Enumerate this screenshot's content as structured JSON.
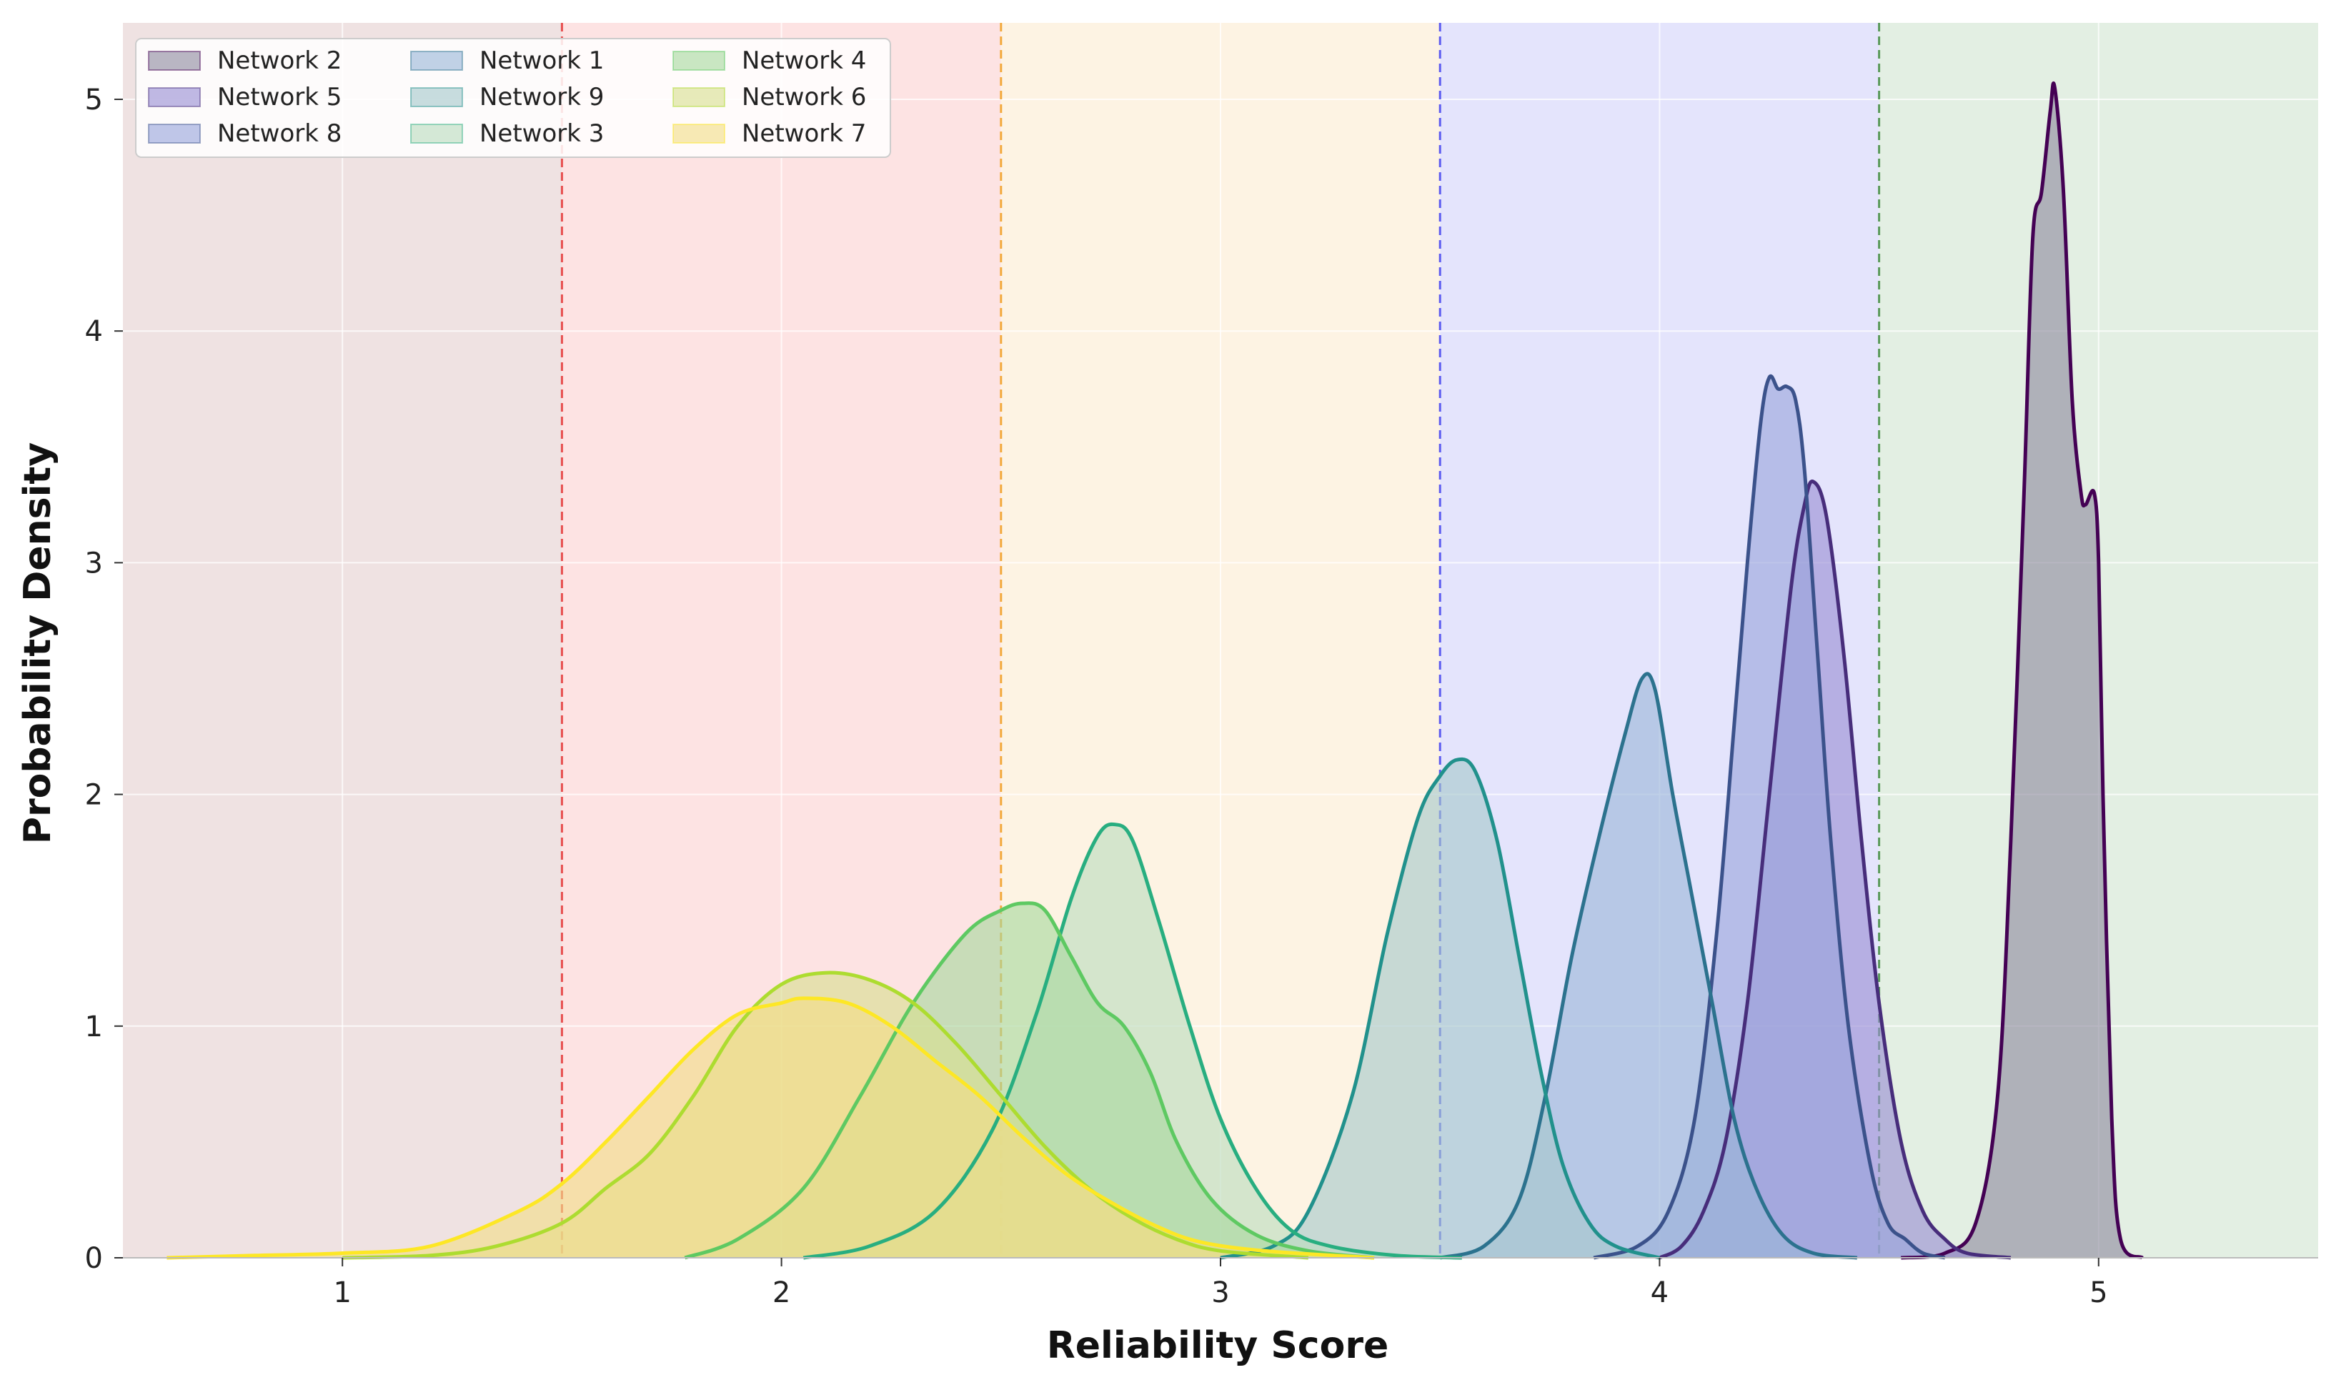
{
  "chart_data": {
    "type": "area",
    "title": "",
    "xlabel": "Reliability Score",
    "ylabel": "Probability Density",
    "xlim": [
      0.5,
      5.5
    ],
    "ylim": [
      0,
      5.33
    ],
    "xticks": [
      1,
      2,
      3,
      4,
      5
    ],
    "yticks": [
      0,
      1,
      2,
      3,
      4,
      5
    ],
    "grid": true,
    "legend_position": "top-left",
    "legend_columns": 3,
    "bands": [
      {
        "from": 0.5,
        "to": 1.5,
        "color": "#efe2e2"
      },
      {
        "from": 1.5,
        "to": 2.5,
        "color": "#fde3e3"
      },
      {
        "from": 2.5,
        "to": 3.5,
        "color": "#fdf3e3"
      },
      {
        "from": 3.5,
        "to": 4.5,
        "color": "#e4e4fc"
      },
      {
        "from": 4.5,
        "to": 5.5,
        "color": "#e3efe3"
      }
    ],
    "thresholds": [
      {
        "x": 1.5,
        "color": "#e85050"
      },
      {
        "x": 2.5,
        "color": "#f3a93c"
      },
      {
        "x": 3.5,
        "color": "#5a5af0"
      },
      {
        "x": 4.5,
        "color": "#5a9a5a"
      }
    ],
    "series": [
      {
        "name": "Network 2",
        "color": "#440154",
        "fill": "#8f8aa0",
        "points": [
          [
            4.55,
            0
          ],
          [
            4.65,
            0.02
          ],
          [
            4.72,
            0.15
          ],
          [
            4.77,
            0.7
          ],
          [
            4.8,
            1.8
          ],
          [
            4.83,
            3.3
          ],
          [
            4.85,
            4.4
          ],
          [
            4.87,
            4.6
          ],
          [
            4.89,
            4.95
          ],
          [
            4.9,
            5.05
          ],
          [
            4.92,
            4.6
          ],
          [
            4.94,
            3.7
          ],
          [
            4.96,
            3.3
          ],
          [
            4.97,
            3.25
          ],
          [
            4.99,
            3.3
          ],
          [
            5.0,
            3.0
          ],
          [
            5.01,
            2.0
          ],
          [
            5.03,
            0.6
          ],
          [
            5.05,
            0.08
          ],
          [
            5.1,
            0
          ]
        ]
      },
      {
        "name": "Network 5",
        "color": "#472d7b",
        "fill": "#9a8ed4",
        "points": [
          [
            4.0,
            0
          ],
          [
            4.05,
            0.05
          ],
          [
            4.1,
            0.2
          ],
          [
            4.15,
            0.5
          ],
          [
            4.2,
            1.1
          ],
          [
            4.25,
            2.0
          ],
          [
            4.3,
            2.9
          ],
          [
            4.33,
            3.25
          ],
          [
            4.35,
            3.35
          ],
          [
            4.38,
            3.2
          ],
          [
            4.42,
            2.6
          ],
          [
            4.46,
            1.8
          ],
          [
            4.5,
            1.1
          ],
          [
            4.55,
            0.5
          ],
          [
            4.6,
            0.2
          ],
          [
            4.65,
            0.08
          ],
          [
            4.7,
            0.02
          ],
          [
            4.8,
            0
          ]
        ]
      },
      {
        "name": "Network 8",
        "color": "#3b528b",
        "fill": "#9aa4dc",
        "points": [
          [
            3.85,
            0
          ],
          [
            3.95,
            0.05
          ],
          [
            4.02,
            0.2
          ],
          [
            4.08,
            0.6
          ],
          [
            4.13,
            1.4
          ],
          [
            4.17,
            2.3
          ],
          [
            4.2,
            3.0
          ],
          [
            4.23,
            3.6
          ],
          [
            4.25,
            3.8
          ],
          [
            4.27,
            3.75
          ],
          [
            4.29,
            3.76
          ],
          [
            4.31,
            3.7
          ],
          [
            4.33,
            3.4
          ],
          [
            4.36,
            2.6
          ],
          [
            4.39,
            1.8
          ],
          [
            4.43,
            1.0
          ],
          [
            4.48,
            0.4
          ],
          [
            4.52,
            0.15
          ],
          [
            4.56,
            0.08
          ],
          [
            4.6,
            0.02
          ],
          [
            4.65,
            0
          ]
        ]
      },
      {
        "name": "Network 1",
        "color": "#2c728e",
        "fill": "#9bb6d8",
        "points": [
          [
            3.5,
            0
          ],
          [
            3.6,
            0.05
          ],
          [
            3.68,
            0.25
          ],
          [
            3.74,
            0.7
          ],
          [
            3.8,
            1.3
          ],
          [
            3.86,
            1.8
          ],
          [
            3.92,
            2.25
          ],
          [
            3.96,
            2.5
          ],
          [
            3.99,
            2.45
          ],
          [
            4.03,
            2.0
          ],
          [
            4.07,
            1.6
          ],
          [
            4.12,
            1.1
          ],
          [
            4.17,
            0.6
          ],
          [
            4.22,
            0.3
          ],
          [
            4.28,
            0.1
          ],
          [
            4.35,
            0.02
          ],
          [
            4.45,
            0
          ]
        ]
      },
      {
        "name": "Network 9",
        "color": "#21918c",
        "fill": "#a6c8cc",
        "points": [
          [
            3.0,
            0
          ],
          [
            3.12,
            0.05
          ],
          [
            3.2,
            0.2
          ],
          [
            3.3,
            0.7
          ],
          [
            3.38,
            1.4
          ],
          [
            3.45,
            1.9
          ],
          [
            3.5,
            2.08
          ],
          [
            3.54,
            2.15
          ],
          [
            3.58,
            2.1
          ],
          [
            3.63,
            1.8
          ],
          [
            3.68,
            1.3
          ],
          [
            3.73,
            0.8
          ],
          [
            3.78,
            0.4
          ],
          [
            3.84,
            0.15
          ],
          [
            3.9,
            0.05
          ],
          [
            4.0,
            0
          ]
        ]
      },
      {
        "name": "Network 3",
        "color": "#28ae80",
        "fill": "#bcdcbe",
        "points": [
          [
            2.05,
            0
          ],
          [
            2.2,
            0.05
          ],
          [
            2.35,
            0.2
          ],
          [
            2.48,
            0.55
          ],
          [
            2.58,
            1.05
          ],
          [
            2.66,
            1.55
          ],
          [
            2.72,
            1.82
          ],
          [
            2.76,
            1.87
          ],
          [
            2.8,
            1.8
          ],
          [
            2.86,
            1.45
          ],
          [
            2.93,
            1.0
          ],
          [
            3.0,
            0.6
          ],
          [
            3.08,
            0.3
          ],
          [
            3.16,
            0.12
          ],
          [
            3.25,
            0.05
          ],
          [
            3.4,
            0.01
          ],
          [
            3.55,
            0
          ]
        ]
      },
      {
        "name": "Network 4",
        "color": "#5ec962",
        "fill": "#a8d89e",
        "points": [
          [
            1.78,
            0
          ],
          [
            1.9,
            0.08
          ],
          [
            2.05,
            0.3
          ],
          [
            2.18,
            0.7
          ],
          [
            2.3,
            1.1
          ],
          [
            2.42,
            1.4
          ],
          [
            2.5,
            1.5
          ],
          [
            2.55,
            1.53
          ],
          [
            2.6,
            1.5
          ],
          [
            2.66,
            1.3
          ],
          [
            2.72,
            1.1
          ],
          [
            2.78,
            1.0
          ],
          [
            2.84,
            0.8
          ],
          [
            2.9,
            0.5
          ],
          [
            2.98,
            0.25
          ],
          [
            3.08,
            0.1
          ],
          [
            3.2,
            0.03
          ],
          [
            3.35,
            0
          ]
        ]
      },
      {
        "name": "Network 6",
        "color": "#addc30",
        "fill": "#d8de90",
        "points": [
          [
            1.0,
            0
          ],
          [
            1.2,
            0.01
          ],
          [
            1.35,
            0.05
          ],
          [
            1.5,
            0.15
          ],
          [
            1.6,
            0.3
          ],
          [
            1.7,
            0.45
          ],
          [
            1.8,
            0.7
          ],
          [
            1.9,
            1.0
          ],
          [
            2.0,
            1.18
          ],
          [
            2.1,
            1.23
          ],
          [
            2.2,
            1.2
          ],
          [
            2.3,
            1.1
          ],
          [
            2.4,
            0.92
          ],
          [
            2.5,
            0.7
          ],
          [
            2.6,
            0.48
          ],
          [
            2.7,
            0.3
          ],
          [
            2.8,
            0.17
          ],
          [
            2.9,
            0.08
          ],
          [
            3.0,
            0.03
          ],
          [
            3.2,
            0
          ]
        ]
      },
      {
        "name": "Network 7",
        "color": "#fde725",
        "fill": "#f2dd88",
        "points": [
          [
            0.6,
            0
          ],
          [
            0.8,
            0.01
          ],
          [
            1.0,
            0.02
          ],
          [
            1.2,
            0.05
          ],
          [
            1.4,
            0.2
          ],
          [
            1.5,
            0.32
          ],
          [
            1.6,
            0.5
          ],
          [
            1.7,
            0.7
          ],
          [
            1.8,
            0.9
          ],
          [
            1.9,
            1.05
          ],
          [
            2.0,
            1.1
          ],
          [
            2.05,
            1.12
          ],
          [
            2.15,
            1.1
          ],
          [
            2.25,
            1.0
          ],
          [
            2.35,
            0.85
          ],
          [
            2.45,
            0.7
          ],
          [
            2.55,
            0.52
          ],
          [
            2.65,
            0.36
          ],
          [
            2.75,
            0.24
          ],
          [
            2.85,
            0.14
          ],
          [
            2.95,
            0.07
          ],
          [
            3.1,
            0.03
          ],
          [
            3.35,
            0
          ]
        ]
      }
    ]
  }
}
